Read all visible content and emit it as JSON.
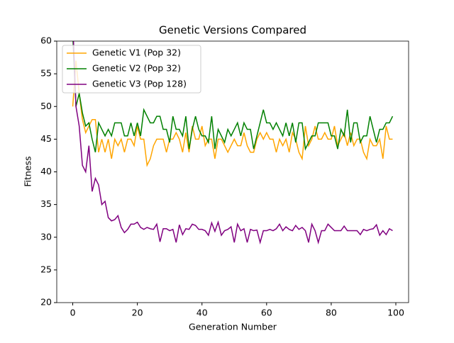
{
  "chart_data": {
    "type": "line",
    "title": "Genetic Versions Compared",
    "x_label": "Generation Number",
    "y_label": "Fitness",
    "x": [
      0,
      1,
      2,
      3,
      4,
      5,
      6,
      7,
      8,
      9,
      10,
      11,
      12,
      13,
      14,
      15,
      16,
      17,
      18,
      19,
      20,
      21,
      22,
      23,
      24,
      25,
      26,
      27,
      28,
      29,
      30,
      31,
      32,
      33,
      34,
      35,
      36,
      37,
      38,
      39,
      40,
      41,
      42,
      43,
      44,
      45,
      46,
      47,
      48,
      49,
      50,
      51,
      52,
      53,
      54,
      55,
      56,
      57,
      58,
      59,
      60,
      61,
      62,
      63,
      64,
      65,
      66,
      67,
      68,
      69,
      70,
      71,
      72,
      73,
      74,
      75,
      76,
      77,
      78,
      79,
      80,
      81,
      82,
      83,
      84,
      85,
      86,
      87,
      88,
      89,
      90,
      91,
      92,
      93,
      94,
      95,
      96,
      97,
      98,
      99
    ],
    "series": [
      {
        "name": "Genetic V1 (Pop 32)",
        "color": "#ffa500",
        "values": [
          50,
          57,
          52,
          48,
          46,
          47,
          48,
          48,
          43,
          45,
          43,
          45,
          42,
          45,
          44,
          45,
          43,
          45,
          45,
          44,
          47,
          45,
          45,
          41,
          42,
          44,
          45,
          45,
          45,
          43,
          45,
          45,
          46,
          45,
          43,
          46,
          43,
          47,
          45,
          45,
          47,
          44,
          45,
          45,
          42,
          45,
          45,
          44,
          43,
          44,
          45,
          44,
          44,
          46,
          44,
          43,
          43,
          45,
          46,
          45,
          46,
          45,
          45,
          43,
          45,
          44,
          45,
          43,
          46,
          45,
          43,
          42,
          47,
          44,
          45,
          47,
          45,
          45,
          46,
          45,
          45,
          47,
          44,
          45,
          46,
          44,
          46,
          44,
          45,
          45,
          43,
          42,
          45,
          44,
          44,
          45,
          42,
          47,
          45,
          45
        ]
      },
      {
        "name": "Genetic V2 (Pop 32)",
        "color": "#008000",
        "values": [
          61,
          50,
          52,
          49,
          47,
          47.5,
          45,
          43,
          47.5,
          46.5,
          45.5,
          46.5,
          45.5,
          47.5,
          47.5,
          47.5,
          45.5,
          45.5,
          47.5,
          45.5,
          47.5,
          45.5,
          49.5,
          48.5,
          47.5,
          47.5,
          48.5,
          48.5,
          46.5,
          46.5,
          44.5,
          48.5,
          46.5,
          46.5,
          45.5,
          48.5,
          43.5,
          46.5,
          48.5,
          46.5,
          45.5,
          45.5,
          44.5,
          48.5,
          43.5,
          46.5,
          45.5,
          44.5,
          46.5,
          45.5,
          46.5,
          47.5,
          45.5,
          47.5,
          46.5,
          46.5,
          43.5,
          45.5,
          47.5,
          49.5,
          47.5,
          47.5,
          46.5,
          47.5,
          46.5,
          45.5,
          47.5,
          45.5,
          47.5,
          44.5,
          47.5,
          47.5,
          43.5,
          44.5,
          45.5,
          45.5,
          47.5,
          47.5,
          47.5,
          47.5,
          45.5,
          45.5,
          43.5,
          46.5,
          45.5,
          49.5,
          44.5,
          47.5,
          47.5,
          44.5,
          45.5,
          45.5,
          48.5,
          46.5,
          44.5,
          46.5,
          46.5,
          47.5,
          47.5,
          48.5
        ]
      },
      {
        "name": "Genetic V3 (Pop 128)",
        "color": "#800080",
        "values": [
          63,
          50,
          47,
          41,
          40,
          44,
          37,
          39,
          38,
          35,
          35.5,
          33,
          32.5,
          32.7,
          33.3,
          31.5,
          30.7,
          31.2,
          32,
          32,
          32.3,
          31.5,
          31.2,
          31.5,
          31.3,
          31.2,
          32,
          29.3,
          31.3,
          31.3,
          31,
          31.2,
          29.2,
          31.9,
          30.4,
          31.3,
          31.2,
          32,
          31.8,
          31.2,
          31.2,
          31,
          30.3,
          32.2,
          30.9,
          32.3,
          30.3,
          31,
          31.2,
          31.6,
          29.2,
          32,
          31,
          31.3,
          29.2,
          31.2,
          31,
          31.1,
          29.2,
          31,
          31,
          31.2,
          31,
          31.3,
          32,
          31,
          31.6,
          31.2,
          31,
          31.8,
          31.2,
          31.5,
          31,
          29.2,
          32,
          31,
          29.2,
          31,
          31,
          32,
          31.5,
          31,
          31,
          31,
          31.7,
          31,
          31,
          31,
          31,
          30.4,
          31.2,
          31,
          31.2,
          31.3,
          31.9,
          30.3,
          31,
          30.4,
          31.3,
          31
        ]
      }
    ],
    "xlim": [
      -4.95,
      103.95
    ],
    "ylim": [
      20,
      60
    ],
    "xticks": [
      0,
      20,
      40,
      60,
      80,
      100
    ],
    "yticks": [
      20,
      25,
      30,
      35,
      40,
      45,
      50,
      55,
      60
    ],
    "legend": "upper left"
  }
}
